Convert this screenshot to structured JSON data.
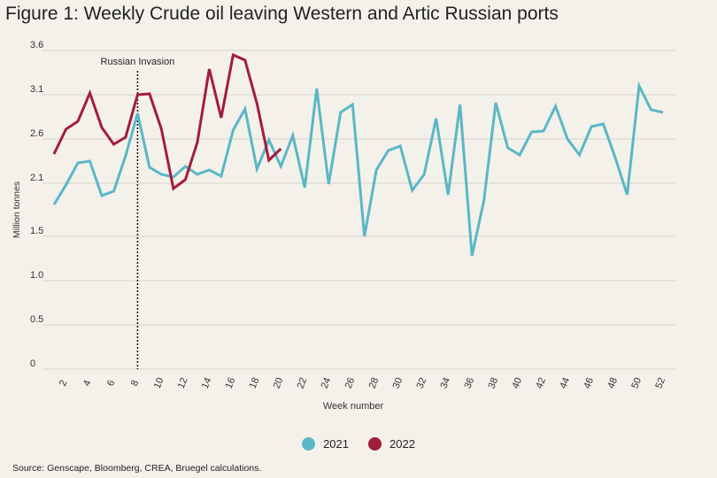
{
  "title": "Figure 1: Weekly Crude oil leaving Western and Artic Russian ports",
  "source": "Source: Genscape, Bloomberg, CREA, Bruegel calculations.",
  "chart_data": {
    "type": "line",
    "xlabel": "Week number",
    "ylabel": "Million tonnes",
    "y_ticks": [
      "0",
      "0.5",
      "1.0",
      "1.5",
      "2.1",
      "2.6",
      "3.1",
      "3.6"
    ],
    "y_tick_values": [
      0,
      0.5,
      1.0,
      1.5,
      2.1,
      2.6,
      3.1,
      3.6
    ],
    "ylim": [
      0,
      3.6
    ],
    "x_ticks": [
      "2",
      "4",
      "6",
      "8",
      "10",
      "12",
      "14",
      "16",
      "18",
      "20",
      "22",
      "24",
      "26",
      "28",
      "30",
      "32",
      "34",
      "36",
      "38",
      "40",
      "42",
      "44",
      "46",
      "48",
      "50",
      "52"
    ],
    "xlim": [
      1,
      52
    ],
    "annotation": {
      "label": "Russian Invasion",
      "week": 8
    },
    "series": [
      {
        "name": "2021",
        "color": "#5ab7c7",
        "x": [
          1,
          2,
          3,
          4,
          5,
          6,
          7,
          8,
          9,
          10,
          11,
          12,
          13,
          14,
          15,
          16,
          17,
          18,
          19,
          20,
          21,
          22,
          23,
          24,
          25,
          26,
          27,
          28,
          29,
          30,
          31,
          32,
          33,
          34,
          35,
          36,
          37,
          38,
          39,
          40,
          41,
          42,
          43,
          44,
          45,
          46,
          47,
          48,
          49,
          50,
          51,
          52
        ],
        "values": [
          1.86,
          2.08,
          2.33,
          2.35,
          1.96,
          2.01,
          2.41,
          2.89,
          2.28,
          2.2,
          2.17,
          2.29,
          2.2,
          2.25,
          2.18,
          2.7,
          2.94,
          2.26,
          2.59,
          2.29,
          2.64,
          2.05,
          3.17,
          2.09,
          2.9,
          2.99,
          1.5,
          2.25,
          2.47,
          2.52,
          2.02,
          2.2,
          2.83,
          1.97,
          2.99,
          1.28,
          1.9,
          3.01,
          2.5,
          2.42,
          2.68,
          2.69,
          2.97,
          2.6,
          2.42,
          2.74,
          2.77,
          2.39,
          1.97,
          3.2,
          2.93,
          2.9
        ]
      },
      {
        "name": "2022",
        "color": "#a31c3c",
        "x": [
          1,
          2,
          3,
          4,
          5,
          6,
          7,
          8,
          9,
          10,
          11,
          12,
          13,
          14,
          15,
          16,
          17,
          18,
          19,
          20
        ],
        "values": [
          2.43,
          2.71,
          2.8,
          3.12,
          2.73,
          2.54,
          2.62,
          3.1,
          3.11,
          2.71,
          2.04,
          2.14,
          2.56,
          3.39,
          2.84,
          3.55,
          3.49,
          3.0,
          2.36,
          2.49
        ]
      }
    ],
    "legend": [
      "2021",
      "2022"
    ],
    "legend_position": "bottom-center"
  }
}
